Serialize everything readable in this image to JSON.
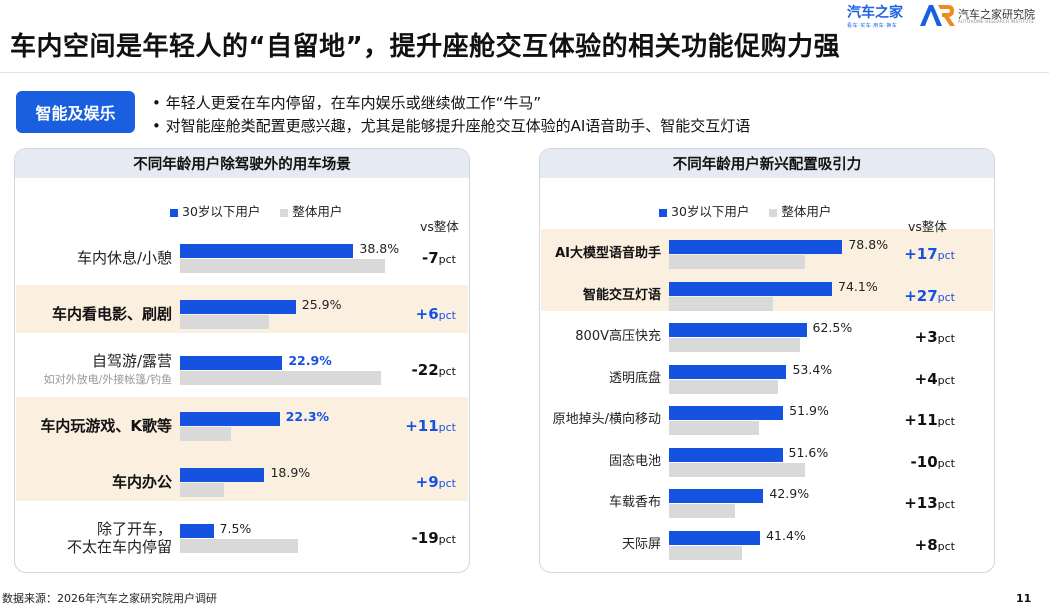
{
  "title": "车内空间是年轻人的“自留地”，提升座舱交互体验的相关功能促购力强",
  "logos": {
    "autohome": "汽车之家",
    "autohome_sub": "看车·买车·用车·换车",
    "research": "汽车之家研究院",
    "research_sub": "AUTOHOME RESEARCH INSTITUTE"
  },
  "tag": "智能及娱乐",
  "bullets": [
    "• 年轻人更爱在车内停留，在车内娱乐或继续做工作“牛马”",
    "• 对智能座舱类配置更感兴趣，尤其是能够提升座舱交互体验的AI语音助手、智能交互灯语"
  ],
  "colors": {
    "young": "#1652e0",
    "overall": "#d9d9d9",
    "highlight": "#fbefe0",
    "panel_header": "#e6eaf2",
    "tag": "#1a5fdf"
  },
  "chart_data": [
    {
      "type": "bar",
      "title": "不同年龄用户除驾驶外的用车场景",
      "legend": [
        "30岁以下用户",
        "整体用户"
      ],
      "diff_header": "vs整体",
      "unit": "pct",
      "xlim": [
        0,
        50
      ],
      "categories": [
        {
          "label": [
            "车内休息/小憩"
          ],
          "young": 38.8,
          "young_label": "38.8%",
          "overall": 45.8,
          "diff": "-7",
          "highlight": false,
          "bold": false,
          "label_hi": false
        },
        {
          "label": [
            "车内看电影、刷剧"
          ],
          "young": 25.9,
          "young_label": "25.9%",
          "overall": 19.9,
          "diff": "+6",
          "highlight": true,
          "bold": true,
          "label_hi": false
        },
        {
          "label": [
            "自驾游/露营"
          ],
          "sub": "如对外放电/外接帐篷/钓鱼",
          "young": 22.9,
          "young_label": "22.9%",
          "overall": 44.9,
          "diff": "-22",
          "highlight": false,
          "bold": false,
          "label_hi": true
        },
        {
          "label": [
            "车内玩游戏、K歌等"
          ],
          "young": 22.3,
          "young_label": "22.3%",
          "overall": 11.3,
          "diff": "+11",
          "highlight": true,
          "bold": true,
          "label_hi": true
        },
        {
          "label": [
            "车内办公"
          ],
          "young": 18.9,
          "young_label": "18.9%",
          "overall": 9.9,
          "diff": "+9",
          "highlight": true,
          "bold": true,
          "label_hi": false
        },
        {
          "label": [
            "除了开车，",
            "不太在车内停留"
          ],
          "young": 7.5,
          "young_label": "7.5%",
          "overall": 26.5,
          "diff": "-19",
          "highlight": false,
          "bold": false,
          "label_hi": false
        }
      ]
    },
    {
      "type": "bar",
      "title": "不同年龄用户新兴配置吸引力",
      "legend": [
        "30岁以下用户",
        "整体用户"
      ],
      "diff_header": "vs整体",
      "unit": "pct",
      "xlim": [
        0,
        100
      ],
      "categories": [
        {
          "label": [
            "AI大模型语音助手"
          ],
          "young": 78.8,
          "young_label": "78.8%",
          "overall": 61.8,
          "diff": "+17",
          "highlight": true,
          "bold": true
        },
        {
          "label": [
            "智能交互灯语"
          ],
          "young": 74.1,
          "young_label": "74.1%",
          "overall": 47.1,
          "diff": "+27",
          "highlight": true,
          "bold": true
        },
        {
          "label": [
            "800V高压快充"
          ],
          "young": 62.5,
          "young_label": "62.5%",
          "overall": 59.5,
          "diff": "+3",
          "highlight": false,
          "bold": false
        },
        {
          "label": [
            "透明底盘"
          ],
          "young": 53.4,
          "young_label": "53.4%",
          "overall": 49.4,
          "diff": "+4",
          "highlight": false,
          "bold": false
        },
        {
          "label": [
            "原地掉头/横向移动"
          ],
          "young": 51.9,
          "young_label": "51.9%",
          "overall": 40.9,
          "diff": "+11",
          "highlight": false,
          "bold": false
        },
        {
          "label": [
            "固态电池"
          ],
          "young": 51.6,
          "young_label": "51.6%",
          "overall": 61.6,
          "diff": "-10",
          "highlight": false,
          "bold": false
        },
        {
          "label": [
            "车载香布"
          ],
          "young": 42.9,
          "young_label": "42.9%",
          "overall": 29.9,
          "diff": "+13",
          "highlight": false,
          "bold": false
        },
        {
          "label": [
            "天际屏"
          ],
          "young": 41.4,
          "young_label": "41.4%",
          "overall": 33.4,
          "diff": "+8",
          "highlight": false,
          "bold": false
        }
      ]
    }
  ],
  "source": "数据来源：2026年汽车之家研究院用户调研",
  "page_number": "11"
}
